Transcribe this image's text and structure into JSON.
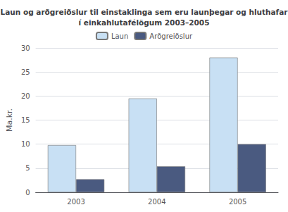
{
  "chart_data": {
    "type": "bar",
    "title": "Laun og arðgreiðslur til einstaklinga sem eru launþegar og hluthafar\ní einkahlutafélögum 2003–2005",
    "ylabel": "Ma.kr.",
    "categories": [
      "2003",
      "2004",
      "2005"
    ],
    "series": [
      {
        "name": "Laun",
        "color": "#c8e0f4",
        "values": [
          9.8,
          19.5,
          28.0
        ]
      },
      {
        "name": "Arðgreiðslur",
        "color": "#4a5a80",
        "values": [
          2.7,
          5.4,
          10.0
        ]
      }
    ],
    "ylim": [
      0,
      30
    ],
    "yticks": [
      0,
      5,
      10,
      15,
      20,
      25,
      30
    ],
    "grid": true,
    "legend": "top"
  }
}
